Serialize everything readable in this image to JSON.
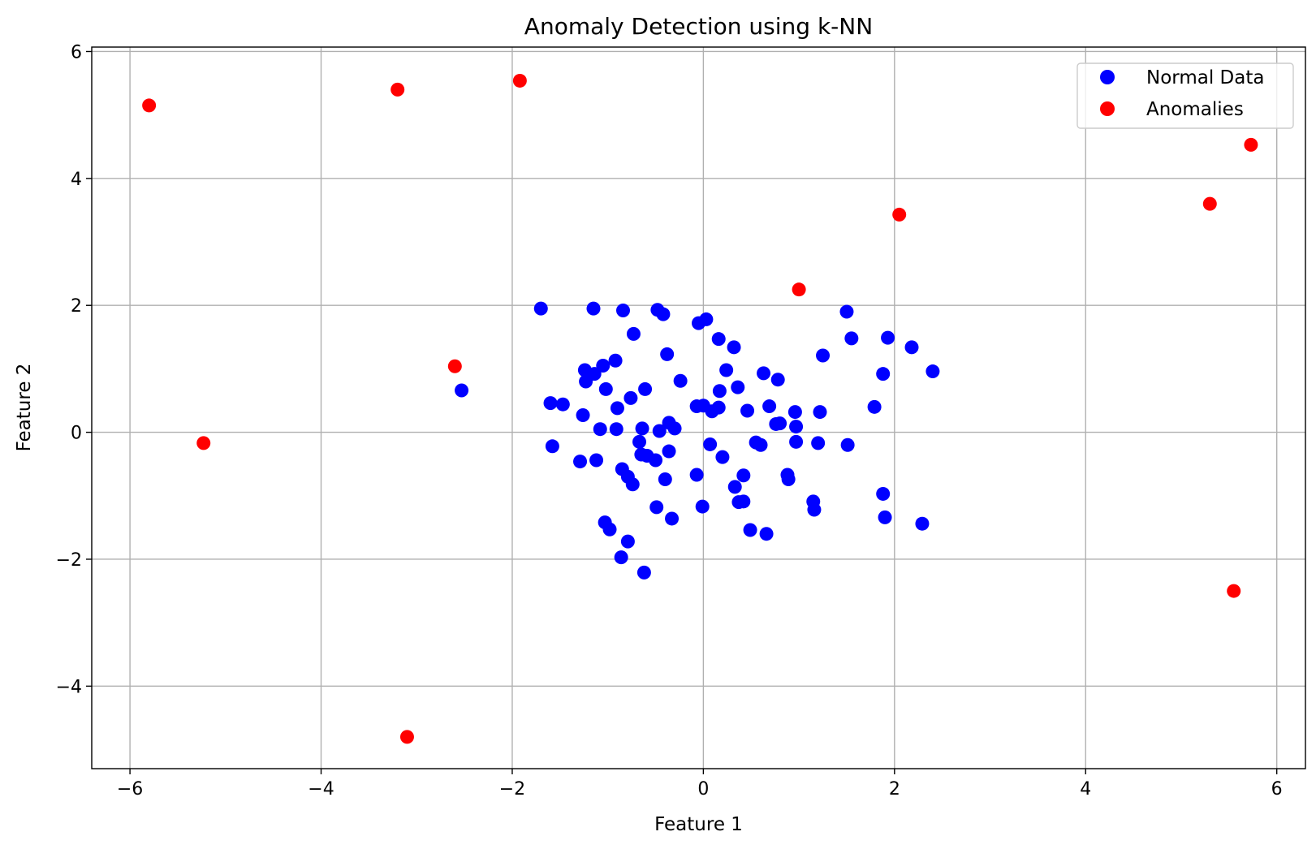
{
  "chart_data": {
    "type": "scatter",
    "title": "Anomaly Detection using k-NN",
    "xlabel": "Feature 1",
    "ylabel": "Feature 2",
    "xlim": [
      -6.4,
      6.3
    ],
    "ylim": [
      -5.3,
      6.07
    ],
    "xticks": [
      -6,
      -4,
      -2,
      0,
      2,
      4,
      6
    ],
    "yticks": [
      -4,
      -2,
      0,
      2,
      4,
      6
    ],
    "xtick_labels": [
      "−6",
      "−4",
      "−2",
      "0",
      "2",
      "4",
      "6"
    ],
    "ytick_labels": [
      "−4",
      "−2",
      "0",
      "2",
      "4",
      "6"
    ],
    "grid": true,
    "legend": "top-right",
    "series": [
      {
        "name": "Normal Data",
        "color": "#0000ff",
        "points": [
          [
            -1.7,
            1.95
          ],
          [
            -1.15,
            1.95
          ],
          [
            -0.84,
            1.92
          ],
          [
            -0.48,
            1.93
          ],
          [
            -0.42,
            1.86
          ],
          [
            -0.05,
            1.72
          ],
          [
            0.03,
            1.78
          ],
          [
            1.5,
            1.9
          ],
          [
            1.55,
            1.48
          ],
          [
            1.93,
            1.49
          ],
          [
            2.18,
            1.34
          ],
          [
            2.4,
            0.96
          ],
          [
            1.88,
            0.92
          ],
          [
            1.25,
            1.21
          ],
          [
            0.78,
            0.83
          ],
          [
            0.63,
            0.93
          ],
          [
            0.36,
            0.71
          ],
          [
            0.17,
            0.65
          ],
          [
            0.24,
            0.98
          ],
          [
            0.32,
            1.34
          ],
          [
            0.16,
            1.47
          ],
          [
            -0.73,
            1.55
          ],
          [
            -0.38,
            1.23
          ],
          [
            -0.24,
            0.81
          ],
          [
            -0.92,
            1.13
          ],
          [
            -1.05,
            1.05
          ],
          [
            -1.24,
            0.98
          ],
          [
            -1.14,
            0.92
          ],
          [
            -1.23,
            0.8
          ],
          [
            -1.02,
            0.68
          ],
          [
            -0.76,
            0.54
          ],
          [
            -0.61,
            0.68
          ],
          [
            -1.6,
            0.46
          ],
          [
            -1.47,
            0.44
          ],
          [
            -1.26,
            0.27
          ],
          [
            -0.9,
            0.38
          ],
          [
            -2.53,
            0.66
          ],
          [
            -0.07,
            0.41
          ],
          [
            0.0,
            0.42
          ],
          [
            0.09,
            0.33
          ],
          [
            0.16,
            0.39
          ],
          [
            0.46,
            0.34
          ],
          [
            0.69,
            0.41
          ],
          [
            0.96,
            0.32
          ],
          [
            1.22,
            0.32
          ],
          [
            1.79,
            0.4
          ],
          [
            0.76,
            0.13
          ],
          [
            0.97,
            0.09
          ],
          [
            0.8,
            0.14
          ],
          [
            -0.36,
            0.15
          ],
          [
            -0.3,
            0.06
          ],
          [
            -0.46,
            0.02
          ],
          [
            -1.08,
            0.05
          ],
          [
            -0.91,
            0.05
          ],
          [
            -0.64,
            0.06
          ],
          [
            0.97,
            -0.15
          ],
          [
            0.55,
            -0.16
          ],
          [
            0.6,
            -0.2
          ],
          [
            0.07,
            -0.19
          ],
          [
            1.2,
            -0.17
          ],
          [
            1.51,
            -0.2
          ],
          [
            -1.58,
            -0.22
          ],
          [
            -0.67,
            -0.15
          ],
          [
            -0.65,
            -0.35
          ],
          [
            -0.59,
            -0.37
          ],
          [
            -0.36,
            -0.3
          ],
          [
            0.2,
            -0.39
          ],
          [
            -1.29,
            -0.46
          ],
          [
            -1.12,
            -0.44
          ],
          [
            -0.5,
            -0.44
          ],
          [
            -0.85,
            -0.58
          ],
          [
            -0.79,
            -0.7
          ],
          [
            -0.74,
            -0.82
          ],
          [
            -0.4,
            -0.74
          ],
          [
            -0.07,
            -0.67
          ],
          [
            0.42,
            -0.68
          ],
          [
            0.88,
            -0.67
          ],
          [
            0.89,
            -0.74
          ],
          [
            0.33,
            -0.86
          ],
          [
            1.88,
            -0.97
          ],
          [
            0.37,
            -1.1
          ],
          [
            0.42,
            -1.09
          ],
          [
            1.15,
            -1.09
          ],
          [
            1.16,
            -1.22
          ],
          [
            -0.49,
            -1.18
          ],
          [
            -0.01,
            -1.17
          ],
          [
            -0.33,
            -1.36
          ],
          [
            1.9,
            -1.34
          ],
          [
            2.29,
            -1.44
          ],
          [
            -1.03,
            -1.42
          ],
          [
            -0.98,
            -1.53
          ],
          [
            0.49,
            -1.54
          ],
          [
            0.66,
            -1.6
          ],
          [
            -0.79,
            -1.72
          ],
          [
            -0.86,
            -1.97
          ],
          [
            -0.62,
            -2.21
          ]
        ]
      },
      {
        "name": "Anomalies",
        "color": "#ff0000",
        "points": [
          [
            -5.8,
            5.15
          ],
          [
            -3.2,
            5.4
          ],
          [
            -1.92,
            5.54
          ],
          [
            5.73,
            4.53
          ],
          [
            5.3,
            3.6
          ],
          [
            2.05,
            3.43
          ],
          [
            1.0,
            2.25
          ],
          [
            -2.6,
            1.04
          ],
          [
            -5.23,
            -0.17
          ],
          [
            5.55,
            -2.5
          ],
          [
            -3.1,
            -4.8
          ]
        ]
      }
    ]
  }
}
